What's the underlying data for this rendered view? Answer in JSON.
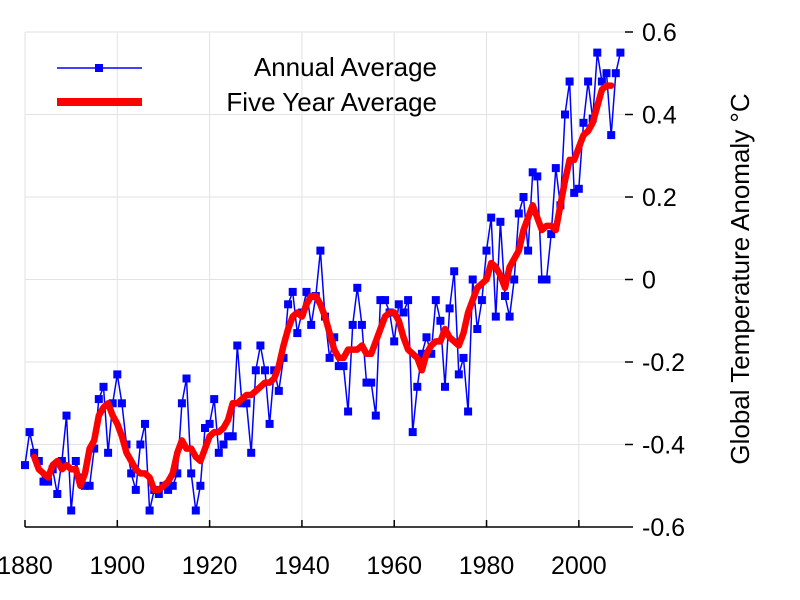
{
  "chart_data": {
    "type": "line",
    "title": "",
    "xlabel": "",
    "ylabel": "Global Temperature Anomaly °C",
    "xlim": [
      1880,
      2010
    ],
    "ylim": [
      -0.6,
      0.6
    ],
    "x_ticks": [
      "1880",
      "1900",
      "1920",
      "1940",
      "1960",
      "1980",
      "2000"
    ],
    "y_ticks": [
      "0.6",
      "0.4",
      "0.2",
      "0",
      "-0.2",
      "-0.4",
      "-0.6"
    ],
    "grid": true,
    "legend_position": "top-left",
    "series": [
      {
        "name": "Annual Average",
        "color": "#0000ff",
        "marker": "square",
        "x": [
          1880,
          1881,
          1882,
          1883,
          1884,
          1885,
          1886,
          1887,
          1888,
          1889,
          1890,
          1891,
          1892,
          1893,
          1894,
          1895,
          1896,
          1897,
          1898,
          1899,
          1900,
          1901,
          1902,
          1903,
          1904,
          1905,
          1906,
          1907,
          1908,
          1909,
          1910,
          1911,
          1912,
          1913,
          1914,
          1915,
          1916,
          1917,
          1918,
          1919,
          1920,
          1921,
          1922,
          1923,
          1924,
          1925,
          1926,
          1927,
          1928,
          1929,
          1930,
          1931,
          1932,
          1933,
          1934,
          1935,
          1936,
          1937,
          1938,
          1939,
          1940,
          1941,
          1942,
          1943,
          1944,
          1945,
          1946,
          1947,
          1948,
          1949,
          1950,
          1951,
          1952,
          1953,
          1954,
          1955,
          1956,
          1957,
          1958,
          1959,
          1960,
          1961,
          1962,
          1963,
          1964,
          1965,
          1966,
          1967,
          1968,
          1969,
          1970,
          1971,
          1972,
          1973,
          1974,
          1975,
          1976,
          1977,
          1978,
          1979,
          1980,
          1981,
          1982,
          1983,
          1984,
          1985,
          1986,
          1987,
          1988,
          1989,
          1990,
          1991,
          1992,
          1993,
          1994,
          1995,
          1996,
          1997,
          1998,
          1999,
          2000,
          2001,
          2002,
          2003,
          2004,
          2005,
          2006,
          2007,
          2008,
          2009
        ],
        "values": [
          -0.45,
          -0.37,
          -0.42,
          -0.44,
          -0.49,
          -0.49,
          -0.46,
          -0.52,
          -0.44,
          -0.33,
          -0.56,
          -0.44,
          -0.48,
          -0.5,
          -0.5,
          -0.41,
          -0.29,
          -0.26,
          -0.42,
          -0.3,
          -0.23,
          -0.3,
          -0.4,
          -0.47,
          -0.51,
          -0.4,
          -0.35,
          -0.56,
          -0.51,
          -0.52,
          -0.5,
          -0.51,
          -0.5,
          -0.47,
          -0.3,
          -0.24,
          -0.47,
          -0.56,
          -0.5,
          -0.36,
          -0.35,
          -0.29,
          -0.42,
          -0.4,
          -0.38,
          -0.38,
          -0.16,
          -0.3,
          -0.3,
          -0.42,
          -0.22,
          -0.16,
          -0.22,
          -0.35,
          -0.22,
          -0.27,
          -0.19,
          -0.06,
          -0.03,
          -0.13,
          -0.08,
          -0.03,
          -0.11,
          -0.04,
          0.07,
          -0.09,
          -0.19,
          -0.14,
          -0.21,
          -0.21,
          -0.32,
          -0.11,
          -0.02,
          -0.11,
          -0.25,
          -0.25,
          -0.33,
          -0.05,
          -0.05,
          -0.08,
          -0.15,
          -0.06,
          -0.08,
          -0.05,
          -0.37,
          -0.26,
          -0.18,
          -0.14,
          -0.18,
          -0.05,
          -0.1,
          -0.26,
          -0.07,
          0.02,
          -0.23,
          -0.19,
          -0.32,
          0.0,
          -0.12,
          -0.05,
          0.07,
          0.15,
          -0.09,
          0.14,
          -0.04,
          -0.09,
          0.0,
          0.16,
          0.2,
          0.07,
          0.26,
          0.25,
          0.0,
          0.0,
          0.11,
          0.27,
          0.18,
          0.4,
          0.48,
          0.21,
          0.22,
          0.38,
          0.48,
          0.39,
          0.55,
          0.48,
          0.5,
          0.35,
          0.5,
          0.55
        ]
      },
      {
        "name": "Five Year Average",
        "color": "#ff0000",
        "x": [
          1882,
          1883,
          1884,
          1885,
          1886,
          1887,
          1888,
          1889,
          1890,
          1891,
          1892,
          1893,
          1894,
          1895,
          1896,
          1897,
          1898,
          1899,
          1900,
          1901,
          1902,
          1903,
          1904,
          1905,
          1906,
          1907,
          1908,
          1909,
          1910,
          1911,
          1912,
          1913,
          1914,
          1915,
          1916,
          1917,
          1918,
          1919,
          1920,
          1921,
          1922,
          1923,
          1924,
          1925,
          1926,
          1927,
          1928,
          1929,
          1930,
          1931,
          1932,
          1933,
          1934,
          1935,
          1936,
          1937,
          1938,
          1939,
          1940,
          1941,
          1942,
          1943,
          1944,
          1945,
          1946,
          1947,
          1948,
          1949,
          1950,
          1951,
          1952,
          1953,
          1954,
          1955,
          1956,
          1957,
          1958,
          1959,
          1960,
          1961,
          1962,
          1963,
          1964,
          1965,
          1966,
          1967,
          1968,
          1969,
          1970,
          1971,
          1972,
          1973,
          1974,
          1975,
          1976,
          1977,
          1978,
          1979,
          1980,
          1981,
          1982,
          1983,
          1984,
          1985,
          1986,
          1987,
          1988,
          1989,
          1990,
          1991,
          1992,
          1993,
          1994,
          1995,
          1996,
          1997,
          1998,
          1999,
          2000,
          2001,
          2002,
          2003,
          2004,
          2005,
          2006,
          2007
        ],
        "values": [
          -0.43,
          -0.46,
          -0.47,
          -0.48,
          -0.45,
          -0.44,
          -0.46,
          -0.45,
          -0.46,
          -0.46,
          -0.5,
          -0.47,
          -0.41,
          -0.39,
          -0.33,
          -0.31,
          -0.3,
          -0.33,
          -0.35,
          -0.38,
          -0.42,
          -0.44,
          -0.46,
          -0.47,
          -0.47,
          -0.48,
          -0.51,
          -0.51,
          -0.5,
          -0.49,
          -0.47,
          -0.42,
          -0.39,
          -0.41,
          -0.41,
          -0.43,
          -0.44,
          -0.41,
          -0.38,
          -0.37,
          -0.37,
          -0.36,
          -0.34,
          -0.3,
          -0.3,
          -0.29,
          -0.28,
          -0.28,
          -0.27,
          -0.26,
          -0.25,
          -0.25,
          -0.24,
          -0.21,
          -0.16,
          -0.12,
          -0.09,
          -0.08,
          -0.09,
          -0.06,
          -0.04,
          -0.04,
          -0.06,
          -0.09,
          -0.13,
          -0.17,
          -0.19,
          -0.19,
          -0.17,
          -0.17,
          -0.17,
          -0.16,
          -0.18,
          -0.18,
          -0.15,
          -0.12,
          -0.09,
          -0.08,
          -0.08,
          -0.1,
          -0.14,
          -0.17,
          -0.18,
          -0.19,
          -0.22,
          -0.18,
          -0.16,
          -0.15,
          -0.15,
          -0.12,
          -0.14,
          -0.15,
          -0.16,
          -0.13,
          -0.08,
          -0.05,
          -0.02,
          -0.01,
          0.0,
          0.04,
          0.03,
          0.01,
          -0.02,
          0.03,
          0.05,
          0.07,
          0.12,
          0.15,
          0.18,
          0.15,
          0.12,
          0.13,
          0.13,
          0.12,
          0.18,
          0.24,
          0.29,
          0.29,
          0.32,
          0.35,
          0.36,
          0.38,
          0.42,
          0.46,
          0.47,
          0.47
        ]
      }
    ]
  }
}
